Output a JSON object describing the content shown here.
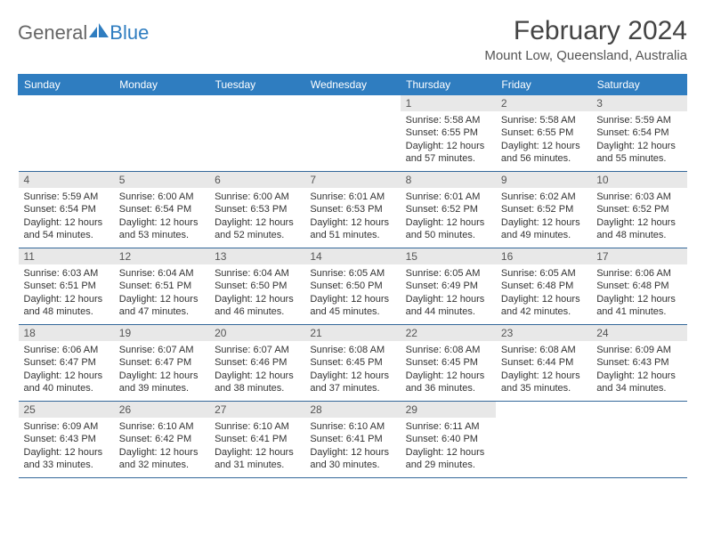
{
  "brand": {
    "word1": "General",
    "word2": "Blue"
  },
  "title": "February 2024",
  "location": "Mount Low, Queensland, Australia",
  "colors": {
    "header_bg": "#2f7dc0",
    "header_text": "#ffffff",
    "row_border": "#34689a",
    "daynum_bg": "#e8e8e8",
    "text": "#333333",
    "brand_gray": "#666666",
    "brand_blue": "#2f7dc0"
  },
  "fonts": {
    "title_size": 30,
    "location_size": 15,
    "header_size": 12,
    "cell_size": 11
  },
  "dayNames": [
    "Sunday",
    "Monday",
    "Tuesday",
    "Wednesday",
    "Thursday",
    "Friday",
    "Saturday"
  ],
  "weeks": [
    [
      null,
      null,
      null,
      null,
      {
        "n": "1",
        "sunrise": "5:58 AM",
        "sunset": "6:55 PM",
        "daylight": "12 hours and 57 minutes."
      },
      {
        "n": "2",
        "sunrise": "5:58 AM",
        "sunset": "6:55 PM",
        "daylight": "12 hours and 56 minutes."
      },
      {
        "n": "3",
        "sunrise": "5:59 AM",
        "sunset": "6:54 PM",
        "daylight": "12 hours and 55 minutes."
      }
    ],
    [
      {
        "n": "4",
        "sunrise": "5:59 AM",
        "sunset": "6:54 PM",
        "daylight": "12 hours and 54 minutes."
      },
      {
        "n": "5",
        "sunrise": "6:00 AM",
        "sunset": "6:54 PM",
        "daylight": "12 hours and 53 minutes."
      },
      {
        "n": "6",
        "sunrise": "6:00 AM",
        "sunset": "6:53 PM",
        "daylight": "12 hours and 52 minutes."
      },
      {
        "n": "7",
        "sunrise": "6:01 AM",
        "sunset": "6:53 PM",
        "daylight": "12 hours and 51 minutes."
      },
      {
        "n": "8",
        "sunrise": "6:01 AM",
        "sunset": "6:52 PM",
        "daylight": "12 hours and 50 minutes."
      },
      {
        "n": "9",
        "sunrise": "6:02 AM",
        "sunset": "6:52 PM",
        "daylight": "12 hours and 49 minutes."
      },
      {
        "n": "10",
        "sunrise": "6:03 AM",
        "sunset": "6:52 PM",
        "daylight": "12 hours and 48 minutes."
      }
    ],
    [
      {
        "n": "11",
        "sunrise": "6:03 AM",
        "sunset": "6:51 PM",
        "daylight": "12 hours and 48 minutes."
      },
      {
        "n": "12",
        "sunrise": "6:04 AM",
        "sunset": "6:51 PM",
        "daylight": "12 hours and 47 minutes."
      },
      {
        "n": "13",
        "sunrise": "6:04 AM",
        "sunset": "6:50 PM",
        "daylight": "12 hours and 46 minutes."
      },
      {
        "n": "14",
        "sunrise": "6:05 AM",
        "sunset": "6:50 PM",
        "daylight": "12 hours and 45 minutes."
      },
      {
        "n": "15",
        "sunrise": "6:05 AM",
        "sunset": "6:49 PM",
        "daylight": "12 hours and 44 minutes."
      },
      {
        "n": "16",
        "sunrise": "6:05 AM",
        "sunset": "6:48 PM",
        "daylight": "12 hours and 42 minutes."
      },
      {
        "n": "17",
        "sunrise": "6:06 AM",
        "sunset": "6:48 PM",
        "daylight": "12 hours and 41 minutes."
      }
    ],
    [
      {
        "n": "18",
        "sunrise": "6:06 AM",
        "sunset": "6:47 PM",
        "daylight": "12 hours and 40 minutes."
      },
      {
        "n": "19",
        "sunrise": "6:07 AM",
        "sunset": "6:47 PM",
        "daylight": "12 hours and 39 minutes."
      },
      {
        "n": "20",
        "sunrise": "6:07 AM",
        "sunset": "6:46 PM",
        "daylight": "12 hours and 38 minutes."
      },
      {
        "n": "21",
        "sunrise": "6:08 AM",
        "sunset": "6:45 PM",
        "daylight": "12 hours and 37 minutes."
      },
      {
        "n": "22",
        "sunrise": "6:08 AM",
        "sunset": "6:45 PM",
        "daylight": "12 hours and 36 minutes."
      },
      {
        "n": "23",
        "sunrise": "6:08 AM",
        "sunset": "6:44 PM",
        "daylight": "12 hours and 35 minutes."
      },
      {
        "n": "24",
        "sunrise": "6:09 AM",
        "sunset": "6:43 PM",
        "daylight": "12 hours and 34 minutes."
      }
    ],
    [
      {
        "n": "25",
        "sunrise": "6:09 AM",
        "sunset": "6:43 PM",
        "daylight": "12 hours and 33 minutes."
      },
      {
        "n": "26",
        "sunrise": "6:10 AM",
        "sunset": "6:42 PM",
        "daylight": "12 hours and 32 minutes."
      },
      {
        "n": "27",
        "sunrise": "6:10 AM",
        "sunset": "6:41 PM",
        "daylight": "12 hours and 31 minutes."
      },
      {
        "n": "28",
        "sunrise": "6:10 AM",
        "sunset": "6:41 PM",
        "daylight": "12 hours and 30 minutes."
      },
      {
        "n": "29",
        "sunrise": "6:11 AM",
        "sunset": "6:40 PM",
        "daylight": "12 hours and 29 minutes."
      },
      null,
      null
    ]
  ],
  "labels": {
    "sunrise": "Sunrise: ",
    "sunset": "Sunset: ",
    "daylight": "Daylight: "
  }
}
